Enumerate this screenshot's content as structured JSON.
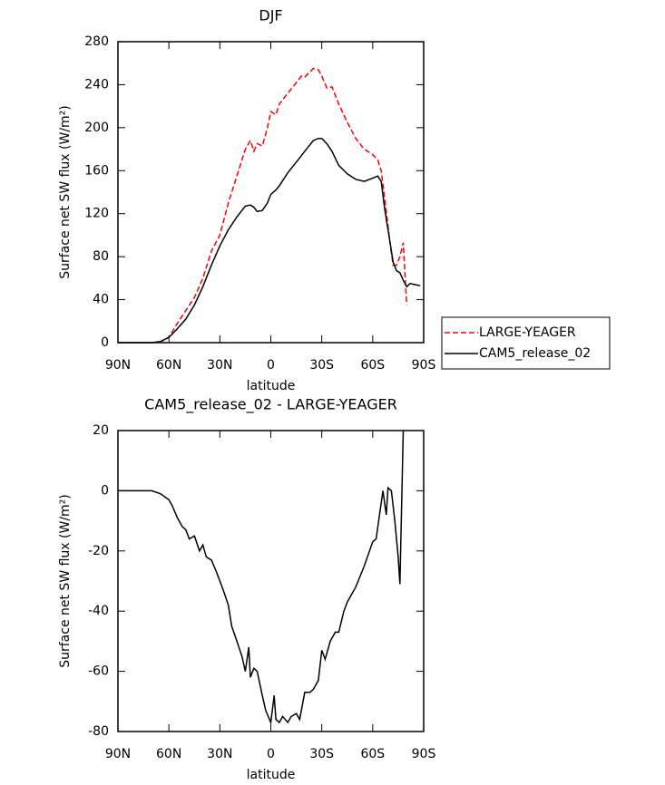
{
  "chart_data": [
    {
      "type": "line",
      "title": "DJF",
      "xlabel": "latitude",
      "ylabel": "Surface net SW flux (W/m²)",
      "x": [
        90,
        85,
        80,
        75,
        70,
        65,
        60,
        55,
        50,
        45,
        40,
        35,
        30,
        25,
        20,
        15,
        12,
        10,
        8,
        5,
        2,
        0,
        -3,
        -5,
        -10,
        -15,
        -18,
        -20,
        -25,
        -28,
        -30,
        -33,
        -36,
        -40,
        -45,
        -50,
        -55,
        -60,
        -63,
        -65,
        -67,
        -70,
        -72,
        -74,
        -76,
        -78,
        -80,
        -82,
        -85,
        -88
      ],
      "series": [
        {
          "name": "LARGE-YEAGER",
          "color": "#ff0000",
          "dashed": true,
          "values": [
            0,
            0,
            0,
            0,
            0,
            0.5,
            5,
            18,
            30,
            42,
            60,
            85,
            100,
            130,
            155,
            180,
            188,
            178,
            185,
            183,
            200,
            215,
            212,
            222,
            232,
            242,
            248,
            247,
            255,
            254,
            248,
            237,
            238,
            222,
            205,
            190,
            180,
            175,
            170,
            160,
            135,
            95,
            72,
            72,
            80,
            93,
            35,
            null,
            null,
            null
          ]
        },
        {
          "name": "CAM5_release_02",
          "color": "#000000",
          "dashed": false,
          "values": [
            0,
            0,
            0,
            0,
            0,
            1,
            5,
            13,
            22,
            35,
            52,
            72,
            90,
            105,
            117,
            127,
            128,
            126,
            122,
            123,
            130,
            138,
            142,
            146,
            158,
            168,
            174,
            178,
            188,
            190,
            190,
            185,
            178,
            165,
            157,
            152,
            150,
            153,
            155,
            150,
            125,
            95,
            75,
            67,
            65,
            58,
            52,
            55,
            54,
            53
          ]
        }
      ],
      "xlim": [
        90,
        -90
      ],
      "xticks": [
        {
          "value": 90,
          "label": "90N"
        },
        {
          "value": 60,
          "label": "60N"
        },
        {
          "value": 30,
          "label": "30N"
        },
        0,
        {
          "value": -30,
          "label": "30S"
        },
        {
          "value": -60,
          "label": "60S"
        },
        {
          "value": -90,
          "label": "90S"
        }
      ],
      "ylim": [
        0,
        280
      ],
      "yticks": [
        0,
        40,
        80,
        120,
        160,
        200,
        240,
        280
      ],
      "legend": "right"
    },
    {
      "type": "line",
      "title": "CAM5_release_02 - LARGE-YEAGER",
      "xlabel": "latitude",
      "ylabel": "Surface net SW flux (W/m²)",
      "x": [
        90,
        85,
        80,
        75,
        70,
        65,
        60,
        58,
        55,
        52,
        50,
        48,
        45,
        42,
        40,
        38,
        35,
        32,
        28,
        25,
        23,
        20,
        17,
        15,
        13,
        12,
        10,
        8,
        5,
        3,
        0,
        -2,
        -3,
        -5,
        -7,
        -10,
        -12,
        -15,
        -17,
        -20,
        -23,
        -25,
        -28,
        -30,
        -32,
        -35,
        -38,
        -40,
        -43,
        -45,
        -50,
        -55,
        -60,
        -62,
        -65,
        -66,
        -68,
        -69,
        -71,
        -73,
        -75,
        -76,
        -78
      ],
      "series": [
        {
          "color": "#000000",
          "dashed": false,
          "values": [
            0,
            0,
            0,
            0,
            0,
            -1,
            -3,
            -5,
            -9,
            -12,
            -13,
            -16,
            -15,
            -20,
            -18,
            -22,
            -23,
            -27,
            -33,
            -38,
            -45,
            -50,
            -55,
            -60,
            -52,
            -62,
            -59,
            -60,
            -68,
            -73,
            -77,
            -68,
            -76,
            -77,
            -75,
            -77,
            -75,
            -74,
            -76,
            -67,
            -67,
            -66,
            -63,
            -53,
            -56,
            -50,
            -47,
            -47,
            -40,
            -37,
            -32,
            -25,
            -17,
            -16,
            -4,
            0,
            -8,
            1,
            0,
            -10,
            -22,
            -31,
            20
          ]
        }
      ],
      "xlim": [
        90,
        -90
      ],
      "xticks": [
        {
          "value": 90,
          "label": "90N"
        },
        {
          "value": 60,
          "label": "60N"
        },
        {
          "value": 30,
          "label": "30N"
        },
        0,
        {
          "value": -30,
          "label": "30S"
        },
        {
          "value": -60,
          "label": "60S"
        },
        {
          "value": -90,
          "label": "90S"
        }
      ],
      "ylim": [
        -80,
        20
      ],
      "yticks": [
        -80,
        -60,
        -40,
        -20,
        0,
        20
      ]
    }
  ]
}
